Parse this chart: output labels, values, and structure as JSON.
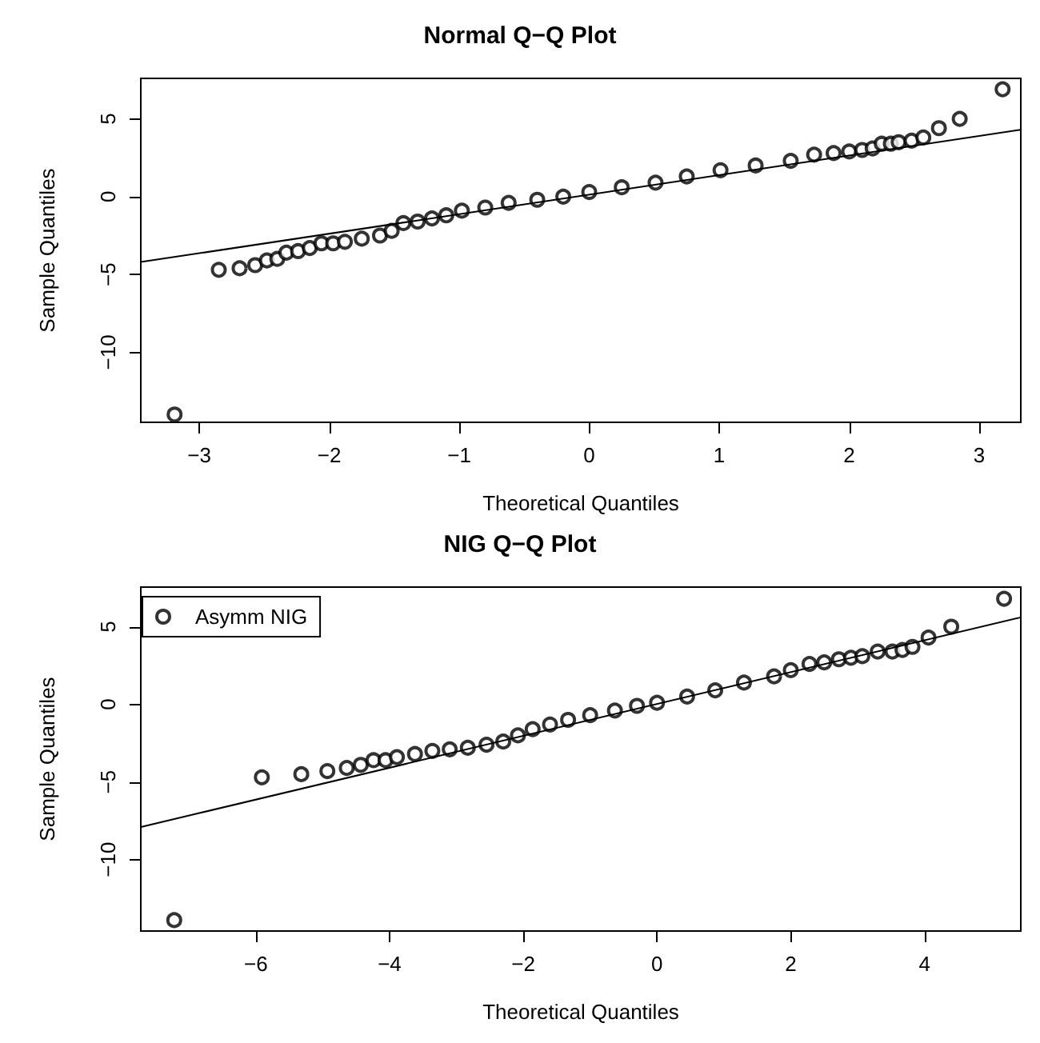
{
  "chart_data": [
    {
      "type": "scatter",
      "title": "Normal Q−Q Plot",
      "xlabel": "Theoretical Quantiles",
      "ylabel": "Sample Quantiles",
      "xlim": [
        -3.45,
        3.32
      ],
      "ylim": [
        -14.5,
        7.6
      ],
      "xticks": [
        -3,
        -2,
        -1,
        0,
        1,
        2,
        3
      ],
      "yticks": [
        -10,
        -5,
        0,
        5
      ],
      "legend": false,
      "grid": false,
      "series": [
        {
          "marker": "circle",
          "color": "#000000",
          "x": [
            -3.19,
            -2.85,
            -2.69,
            -2.57,
            -2.48,
            -2.4,
            -2.33,
            -2.24,
            -2.15,
            -2.06,
            -1.97,
            -1.88,
            -1.75,
            -1.61,
            -1.52,
            -1.43,
            -1.32,
            -1.21,
            -1.1,
            -0.98,
            -0.8,
            -0.62,
            -0.4,
            -0.2,
            0,
            0.25,
            0.51,
            0.75,
            1.01,
            1.28,
            1.55,
            1.73,
            1.88,
            2.0,
            2.1,
            2.18,
            2.25,
            2.32,
            2.38,
            2.48,
            2.57,
            2.69,
            2.85,
            3.18
          ],
          "values": [
            -14,
            -4.7,
            -4.6,
            -4.4,
            -4.1,
            -4,
            -3.6,
            -3.5,
            -3.3,
            -3,
            -3,
            -2.9,
            -2.7,
            -2.5,
            -2.2,
            -1.7,
            -1.6,
            -1.4,
            -1.2,
            -0.9,
            -0.7,
            -0.4,
            -0.2,
            0,
            0.3,
            0.6,
            0.9,
            1.3,
            1.7,
            2,
            2.3,
            2.7,
            2.8,
            2.9,
            3,
            3.1,
            3.4,
            3.4,
            3.5,
            3.6,
            3.8,
            4.4,
            5,
            6.9
          ]
        },
        {
          "type": "line",
          "marker": "none",
          "color": "#000000",
          "x": [
            -3.45,
            3.32
          ],
          "values": [
            -4.2,
            4.3
          ]
        }
      ]
    },
    {
      "type": "scatter",
      "title": "NIG Q−Q Plot",
      "xlabel": "Theoretical Quantiles",
      "ylabel": "Sample Quantiles",
      "xlim": [
        -7.72,
        5.44
      ],
      "ylim": [
        -14.6,
        7.55
      ],
      "xticks": [
        -6,
        -4,
        -2,
        0,
        2,
        4
      ],
      "yticks": [
        -10,
        -5,
        0,
        5
      ],
      "legend": "top left",
      "grid": false,
      "series": [
        {
          "name": "Asymm NIG",
          "marker": "circle",
          "color": "#000000",
          "x": [
            -7.22,
            -5.91,
            -5.32,
            -4.93,
            -4.64,
            -4.43,
            -4.24,
            -4.06,
            -3.89,
            -3.62,
            -3.36,
            -3.1,
            -2.83,
            -2.55,
            -2.3,
            -2.08,
            -1.86,
            -1.6,
            -1.33,
            -1.0,
            -0.63,
            -0.3,
            0,
            0.45,
            0.87,
            1.3,
            1.75,
            2.0,
            2.28,
            2.5,
            2.72,
            2.9,
            3.07,
            3.3,
            3.52,
            3.67,
            3.82,
            4.06,
            4.4,
            5.19
          ],
          "values": [
            -13.9,
            -4.7,
            -4.5,
            -4.3,
            -4.1,
            -3.9,
            -3.6,
            -3.6,
            -3.4,
            -3.2,
            -3,
            -2.9,
            -2.8,
            -2.6,
            -2.4,
            -2,
            -1.6,
            -1.3,
            -1,
            -0.7,
            -0.4,
            -0.1,
            0.1,
            0.5,
            0.9,
            1.4,
            1.8,
            2.2,
            2.6,
            2.7,
            2.9,
            3,
            3.1,
            3.4,
            3.4,
            3.5,
            3.7,
            4.3,
            5,
            6.8
          ]
        },
        {
          "type": "line",
          "marker": "none",
          "color": "#000000",
          "x": [
            -7.72,
            5.44
          ],
          "values": [
            -7.9,
            5.6
          ]
        }
      ]
    }
  ]
}
